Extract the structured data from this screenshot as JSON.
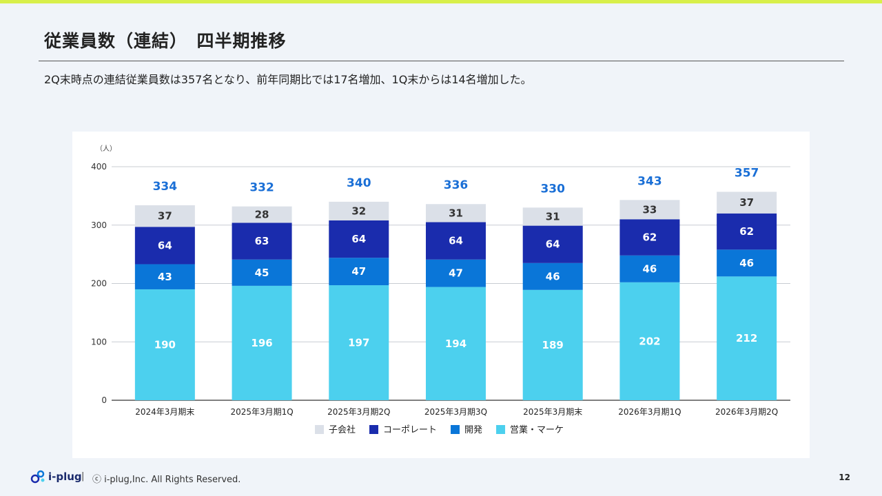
{
  "page": {
    "title": "従業員数（連結）　四半期推移",
    "subtitle": "2Q末時点の連結従業員数は357名となり、前年同期比では17名増加、1Q末からは14名増加した。"
  },
  "footer": {
    "brand": "i-plug",
    "separator": "|",
    "copyright": "ⓒ i-plug,Inc. All Rights Reserved.",
    "page_number": "12"
  },
  "colors": {
    "accent_bar": "#d8ef4a",
    "total_label": "#1a6fd6"
  },
  "chart_data": {
    "type": "bar",
    "stacked": true,
    "unit_label": "（人）",
    "ylim": [
      0,
      400
    ],
    "yticks": [
      0,
      100,
      200,
      300,
      400
    ],
    "grid": true,
    "legend_position": "bottom",
    "categories": [
      "2024年3月期末",
      "2025年3月期1Q",
      "2025年3月期2Q",
      "2025年3月期3Q",
      "2025年3月期末",
      "2026年3月期1Q",
      "2026年3月期2Q"
    ],
    "series": [
      {
        "name": "営業・マーケ",
        "color": "#4cd0ee",
        "label_color": "#ffffff",
        "values": [
          190,
          196,
          197,
          194,
          189,
          202,
          212
        ]
      },
      {
        "name": "開発",
        "color": "#0a76d8",
        "label_color": "#ffffff",
        "values": [
          43,
          45,
          47,
          47,
          46,
          46,
          46
        ]
      },
      {
        "name": "コーポレート",
        "color": "#1a2cad",
        "label_color": "#ffffff",
        "values": [
          64,
          63,
          64,
          64,
          64,
          62,
          62
        ]
      },
      {
        "name": "子会社",
        "color": "#dbe0e8",
        "label_color": "#333333",
        "values": [
          37,
          28,
          32,
          31,
          31,
          33,
          37
        ]
      }
    ],
    "totals": [
      334,
      332,
      340,
      336,
      330,
      343,
      357
    ],
    "legend_order": [
      "子会社",
      "コーポレート",
      "開発",
      "営業・マーケ"
    ]
  }
}
